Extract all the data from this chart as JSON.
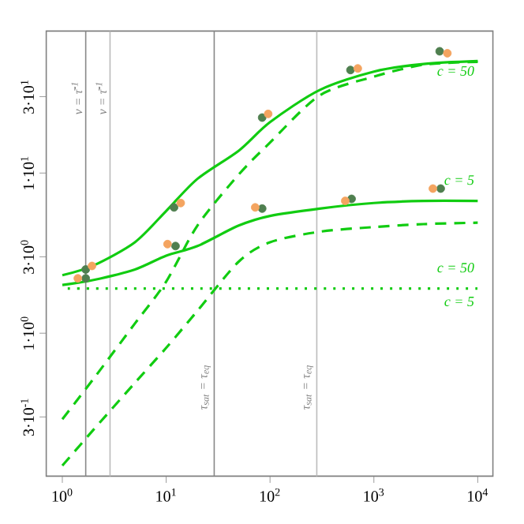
{
  "chart_data": {
    "type": "line",
    "log": "xy",
    "grid": false,
    "xlim": [
      0.7,
      14000
    ],
    "ylim": [
      0.128,
      77
    ],
    "xticks": [
      {
        "value": 1,
        "label": "10$^{0}$"
      },
      {
        "value": 10,
        "label": "10$^{1}$"
      },
      {
        "value": 100,
        "label": "10$^{2}$"
      },
      {
        "value": 1000,
        "label": "10$^{3}$"
      },
      {
        "value": 10000,
        "label": "10$^{4}$"
      }
    ],
    "yticks": [
      {
        "value": 0.3,
        "label": "3·10$^{-1}$"
      },
      {
        "value": 1,
        "label": "1·10$^{0}$"
      },
      {
        "value": 3,
        "label": "3·10$^{0}$"
      },
      {
        "value": 10,
        "label": "1·10$^{1}$"
      },
      {
        "value": 30,
        "label": "3·10$^{1}$"
      }
    ],
    "series": [
      {
        "name": "c = 50",
        "color": "#11cc11",
        "line_style": "solid",
        "marker": "none",
        "x": [
          1,
          2,
          5,
          10,
          20,
          50,
          100,
          300,
          1000,
          3000,
          10000
        ],
        "values": [
          2.3,
          2.65,
          3.7,
          5.8,
          9.2,
          13.8,
          20.8,
          33,
          43,
          48,
          50
        ]
      },
      {
        "color": "#11cc11",
        "line_style": "dashed",
        "marker": "none",
        "x": [
          1,
          2,
          5,
          10,
          20,
          50,
          100,
          300,
          1000,
          3000,
          10000
        ],
        "values": [
          0.29,
          0.52,
          1.15,
          2.1,
          4.7,
          9.8,
          15.5,
          30.5,
          40,
          47.5,
          49.5
        ]
      },
      {
        "name": "c = 5",
        "color": "#11cc11",
        "line_style": "solid",
        "marker": "none",
        "x": [
          1,
          2,
          5,
          10,
          20,
          50,
          100,
          300,
          1000,
          3000,
          10000
        ],
        "values": [
          2.0,
          2.15,
          2.5,
          3.05,
          3.5,
          4.7,
          5.4,
          6.0,
          6.5,
          6.7,
          6.7
        ]
      },
      {
        "color": "#11cc11",
        "line_style": "dashed",
        "marker": "none",
        "x": [
          1,
          2,
          5,
          10,
          20,
          50,
          100,
          300,
          1000,
          3000,
          10000
        ],
        "values": [
          0.149,
          0.25,
          0.49,
          0.81,
          1.38,
          2.8,
          3.7,
          4.3,
          4.6,
          4.8,
          4.9
        ]
      },
      {
        "name": "c = 50",
        "color": "#11cc11",
        "line_style": "dotted",
        "marker": "none",
        "x": [
          1,
          10000
        ],
        "values": [
          1.9,
          1.9
        ]
      },
      {
        "type": "scatter",
        "color": "#4f7f4f",
        "marker": "circle",
        "x": [
          1.68,
          1.68,
          11.9,
          12.3,
          84,
          84,
          595,
          610,
          4300,
          4400
        ],
        "values": [
          2.5,
          2.2,
          6.1,
          3.5,
          22.2,
          6.0,
          44,
          6.9,
          57.6,
          8.0
        ]
      },
      {
        "type": "scatter",
        "color": "#f4a460",
        "marker": "circle",
        "x": [
          1.41,
          1.93,
          13.8,
          10.3,
          96,
          72,
          700,
          530,
          5100,
          3700
        ],
        "values": [
          2.2,
          2.63,
          6.5,
          3.6,
          23.4,
          6.1,
          45,
          6.7,
          56,
          8.0
        ]
      }
    ],
    "ref_lines": [
      {
        "axis": "x",
        "value": 1.68,
        "label": "v = τ̄$^{-1}$",
        "color": "#888888"
      },
      {
        "axis": "x",
        "value": 2.88,
        "label": "v = τ̄$^{-1}$",
        "color": "#bbbbbb"
      },
      {
        "axis": "x",
        "value": 29,
        "label": "τ$_{sat}$ = τ$_{eq}$",
        "color": "#888888"
      },
      {
        "axis": "x",
        "value": 282,
        "label": "τ$_{sat}$ = τ$_{eq}$",
        "color": "#bbbbbb"
      }
    ],
    "annotations": [
      "c = 5"
    ]
  }
}
